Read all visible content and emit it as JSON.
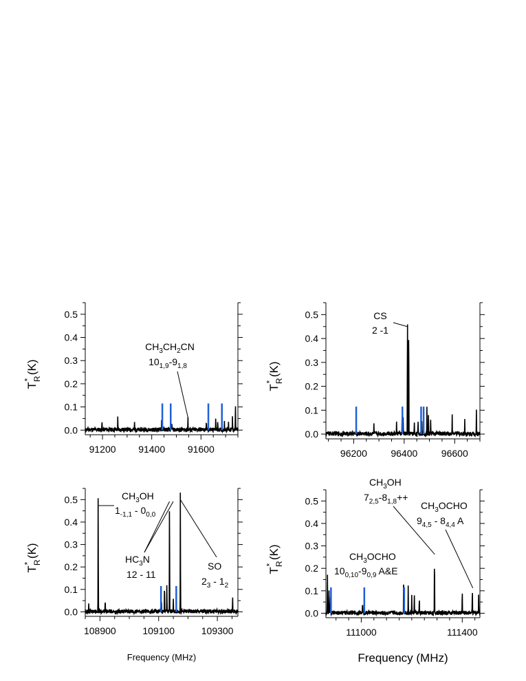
{
  "chart_data": [
    {
      "type": "line",
      "id": "p1",
      "ylabel": "T_R* (K)",
      "xlabel": "",
      "xlim": [
        91130,
        91750
      ],
      "ylim": [
        -0.02,
        0.55
      ],
      "xticks": [
        91200,
        91400,
        91600
      ],
      "yticks": [
        0.0,
        0.1,
        0.2,
        0.3,
        0.4,
        0.5
      ],
      "marker_lines": [
        91443,
        91477,
        91630,
        91685
      ],
      "marker_color": "#1f5fd6",
      "peaks": [
        [
          91198,
          0.035
        ],
        [
          91262,
          0.05
        ],
        [
          91330,
          0.035
        ],
        [
          91440,
          0.04
        ],
        [
          91482,
          0.03
        ],
        [
          91547,
          0.055
        ],
        [
          91622,
          0.03
        ],
        [
          91660,
          0.05
        ],
        [
          91668,
          0.04
        ],
        [
          91695,
          0.03
        ],
        [
          91712,
          0.04
        ],
        [
          91728,
          0.06
        ],
        [
          91740,
          0.12
        ]
      ],
      "annotations": [
        {
          "main": "CH",
          "sub1": "3",
          "mid": "CH",
          "sub2": "2",
          "tail": "CN",
          "line2": "10",
          "sub3": "1,9",
          "line2b": "-9",
          "sub4": "1,8",
          "point": [
            91548,
            0.05
          ]
        }
      ]
    },
    {
      "type": "line",
      "id": "p2",
      "ylabel": "T_R* (K)",
      "xlabel": "",
      "xlim": [
        96090,
        96700
      ],
      "ylim": [
        -0.02,
        0.55
      ],
      "xticks": [
        96200,
        96400,
        96600
      ],
      "yticks": [
        0.0,
        0.1,
        0.2,
        0.3,
        0.4,
        0.5
      ],
      "marker_lines": [
        96210,
        96393,
        96467,
        96477
      ],
      "marker_color": "#1f5fd6",
      "peaks": [
        [
          96280,
          0.04
        ],
        [
          96370,
          0.05
        ],
        [
          96392,
          0.1
        ],
        [
          96396,
          0.07
        ],
        [
          96413,
          0.55
        ],
        [
          96418,
          0.5
        ],
        [
          96440,
          0.05
        ],
        [
          96455,
          0.05
        ],
        [
          96470,
          0.06
        ],
        [
          96490,
          0.12
        ],
        [
          96496,
          0.08
        ],
        [
          96505,
          0.07
        ],
        [
          96590,
          0.08
        ],
        [
          96640,
          0.06
        ],
        [
          96686,
          0.1
        ]
      ],
      "annotations": [
        {
          "line1": "CS",
          "line2": "2 -1",
          "point": [
            96412,
            0.45
          ]
        }
      ]
    },
    {
      "type": "line",
      "id": "p3",
      "ylabel": "T_R* (K)",
      "xlabel": "Frequency (MHz)",
      "xlim": [
        108850,
        109370
      ],
      "ylim": [
        -0.02,
        0.55
      ],
      "xticks": [
        108900,
        109100,
        109300
      ],
      "yticks": [
        0.0,
        0.1,
        0.2,
        0.3,
        0.4,
        0.5
      ],
      "marker_lines": [
        109108,
        109160
      ],
      "marker_color": "#1f5fd6",
      "peaks": [
        [
          108862,
          0.03
        ],
        [
          108894,
          0.55
        ],
        [
          108918,
          0.05
        ],
        [
          109110,
          0.04
        ],
        [
          109120,
          0.14
        ],
        [
          109128,
          0.13
        ],
        [
          109137,
          0.55
        ],
        [
          109150,
          0.05
        ],
        [
          109174,
          0.55
        ],
        [
          109352,
          0.06
        ]
      ],
      "annotations": [
        {
          "kind": "ch3oh",
          "point": [
            108896,
            0.5
          ]
        },
        {
          "kind": "hc3n",
          "point": [
            109136,
            0.5
          ]
        },
        {
          "kind": "so",
          "point": [
            109175,
            0.5
          ]
        }
      ]
    },
    {
      "type": "line",
      "id": "p4",
      "ylabel": "T_R* (K)",
      "xlabel": "Frequency (MHz)",
      "xlim": [
        110860,
        111470
      ],
      "ylim": [
        -0.02,
        0.55
      ],
      "xticks": [
        111000,
        111400
      ],
      "yticks": [
        0.0,
        0.1,
        0.2,
        0.3,
        0.4,
        0.5
      ],
      "marker_lines": [
        110880,
        111012,
        111170
      ],
      "marker_color": "#1f5fd6",
      "peaks": [
        [
          110866,
          0.17
        ],
        [
          110872,
          0.1
        ],
        [
          110878,
          0.08
        ],
        [
          111005,
          0.05
        ],
        [
          111168,
          0.18
        ],
        [
          111186,
          0.12
        ],
        [
          111200,
          0.08
        ],
        [
          111210,
          0.09
        ],
        [
          111230,
          0.07
        ],
        [
          111290,
          0.27
        ],
        [
          111400,
          0.1
        ],
        [
          111440,
          0.115
        ],
        [
          111465,
          0.09
        ]
      ],
      "annotations": [
        {
          "kind": "ch3oh_72",
          "point": [
            111291,
            0.26
          ]
        },
        {
          "kind": "ch3ocho_94",
          "point": [
            111442,
            0.11
          ]
        },
        {
          "kind": "ch3ocho_10",
          "point": [
            111168,
            0.17
          ]
        }
      ]
    }
  ]
}
